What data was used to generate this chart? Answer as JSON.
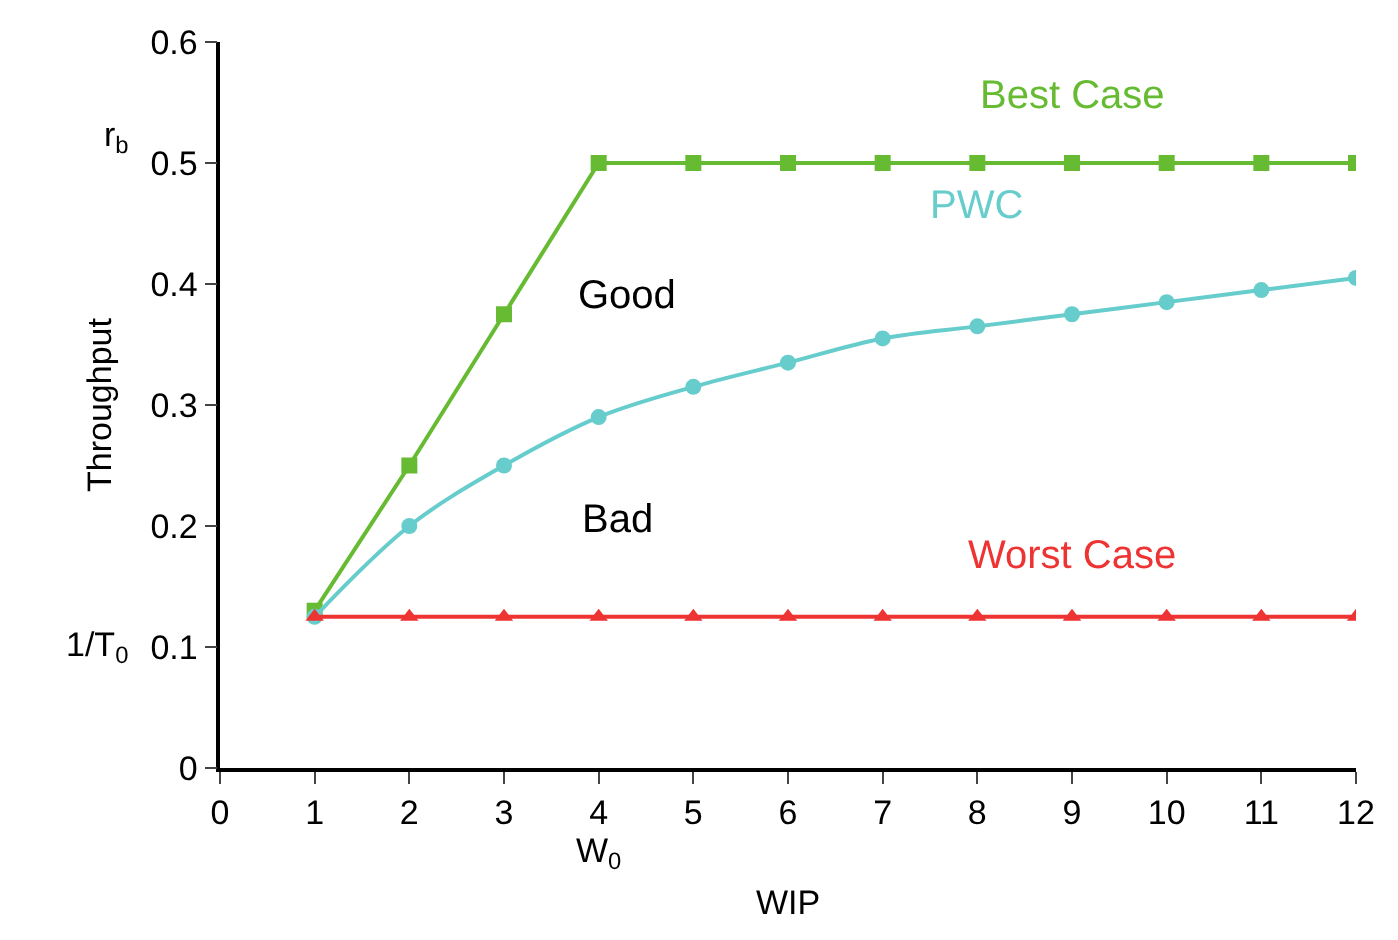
{
  "chart_data": {
    "type": "line",
    "x": [
      1,
      2,
      3,
      4,
      5,
      6,
      7,
      8,
      9,
      10,
      11,
      12
    ],
    "series": [
      {
        "name": "Best Case",
        "color": "#66bb33",
        "marker": "square",
        "values": [
          0.13,
          0.25,
          0.375,
          0.5,
          0.5,
          0.5,
          0.5,
          0.5,
          0.5,
          0.5,
          0.5,
          0.5
        ]
      },
      {
        "name": "PWC",
        "color": "#66cccc",
        "marker": "circle",
        "values": [
          0.125,
          0.2,
          0.25,
          0.29,
          0.315,
          0.335,
          0.355,
          0.365,
          0.375,
          0.385,
          0.395,
          0.405
        ]
      },
      {
        "name": "Worst Case",
        "color": "#ee3333",
        "marker": "triangle",
        "values": [
          0.125,
          0.125,
          0.125,
          0.125,
          0.125,
          0.125,
          0.125,
          0.125,
          0.125,
          0.125,
          0.125,
          0.125
        ]
      }
    ],
    "xlabel": "WIP",
    "ylabel": "Throughput",
    "xlim": [
      0,
      12
    ],
    "xticks": [
      0,
      1,
      2,
      3,
      4,
      5,
      6,
      7,
      8,
      9,
      10,
      11,
      12
    ],
    "ylim": [
      0,
      0.6
    ],
    "yticks": [
      0,
      0.1,
      0.2,
      0.3,
      0.4,
      0.5,
      0.6
    ],
    "legend": false,
    "annotations": [
      "Good",
      "Bad",
      "r$_{b}$",
      "1/T$_{0}$",
      "W$_{0}$"
    ]
  }
}
